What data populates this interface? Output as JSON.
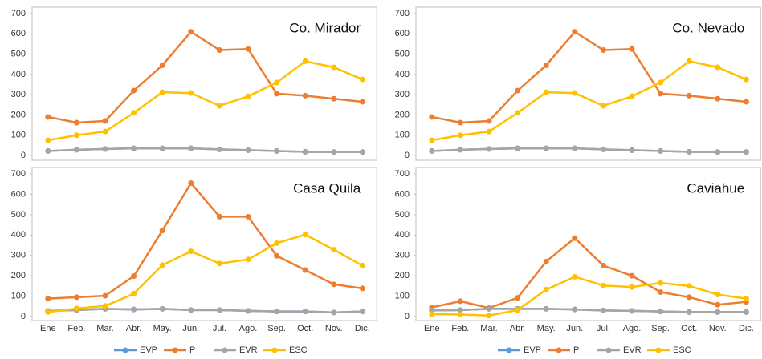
{
  "chart_data": [
    {
      "type": "line",
      "title": "Co. Mirador",
      "ylim": [
        0,
        700
      ],
      "yticks": [
        0,
        100,
        200,
        300,
        400,
        500,
        600,
        700
      ],
      "series": [
        {
          "color": "#5b9bd5",
          "values": [
            22,
            28,
            32,
            35,
            35,
            35,
            30,
            26,
            22,
            18,
            17,
            17
          ]
        },
        {
          "color": "#ed7d31",
          "values": [
            190,
            162,
            170,
            320,
            445,
            610,
            520,
            525,
            305,
            295,
            280,
            265
          ]
        },
        {
          "color": "#a5a5a5",
          "values": [
            22,
            28,
            32,
            35,
            35,
            35,
            30,
            26,
            22,
            18,
            17,
            17
          ]
        },
        {
          "color": "#ffc000",
          "values": [
            75,
            100,
            118,
            210,
            312,
            308,
            245,
            292,
            360,
            465,
            435,
            375
          ]
        }
      ]
    },
    {
      "type": "line",
      "title": "Co. Nevado",
      "ylim": [
        0,
        700
      ],
      "yticks": [
        0,
        100,
        200,
        300,
        400,
        500,
        600,
        700
      ],
      "series": [
        {
          "color": "#5b9bd5",
          "values": [
            22,
            28,
            32,
            35,
            35,
            35,
            30,
            26,
            22,
            18,
            17,
            17
          ]
        },
        {
          "color": "#ed7d31",
          "values": [
            190,
            162,
            170,
            320,
            445,
            610,
            520,
            525,
            305,
            295,
            280,
            265
          ]
        },
        {
          "color": "#a5a5a5",
          "values": [
            22,
            28,
            32,
            35,
            35,
            35,
            30,
            26,
            22,
            18,
            17,
            17
          ]
        },
        {
          "color": "#ffc000",
          "values": [
            75,
            100,
            118,
            210,
            312,
            308,
            245,
            292,
            360,
            465,
            435,
            375
          ]
        }
      ]
    },
    {
      "type": "line",
      "title": "Casa Quila",
      "ylim": [
        0,
        700
      ],
      "yticks": [
        0,
        100,
        200,
        300,
        400,
        500,
        600,
        700
      ],
      "categories": [
        "Ene",
        "Feb.",
        "Mar.",
        "Abr.",
        "May.",
        "Jun.",
        "Jul.",
        "Ago.",
        "Sep.",
        "Oct.",
        "Nov.",
        "Dic."
      ],
      "series": [
        {
          "name": "EVP",
          "color": "#5b9bd5",
          "values": [
            28,
            32,
            38,
            35,
            38,
            32,
            32,
            28,
            25,
            25,
            20,
            25
          ]
        },
        {
          "name": "P",
          "color": "#ed7d31",
          "values": [
            88,
            95,
            102,
            198,
            422,
            655,
            490,
            490,
            298,
            228,
            158,
            138
          ]
        },
        {
          "name": "EVR",
          "color": "#a5a5a5",
          "values": [
            28,
            32,
            38,
            35,
            38,
            32,
            32,
            28,
            25,
            25,
            20,
            25
          ]
        },
        {
          "name": "ESC",
          "color": "#ffc000",
          "values": [
            22,
            40,
            52,
            112,
            252,
            320,
            260,
            280,
            360,
            402,
            328,
            250
          ]
        }
      ]
    },
    {
      "type": "line",
      "title": "Caviahue",
      "ylim": [
        0,
        700
      ],
      "yticks": [
        0,
        100,
        200,
        300,
        400,
        500,
        600,
        700
      ],
      "categories": [
        "Ene",
        "Feb.",
        "Mar.",
        "Abr.",
        "May.",
        "Jun.",
        "Jul.",
        "Ago.",
        "Sep.",
        "Oct.",
        "Nov.",
        "Dic."
      ],
      "series": [
        {
          "name": "EVP",
          "color": "#5b9bd5",
          "values": [
            30,
            32,
            38,
            38,
            38,
            35,
            30,
            28,
            25,
            22,
            22,
            22
          ]
        },
        {
          "name": "P",
          "color": "#ed7d31",
          "values": [
            45,
            75,
            42,
            92,
            270,
            385,
            250,
            200,
            120,
            95,
            58,
            72
          ]
        },
        {
          "name": "EVR",
          "color": "#a5a5a5",
          "values": [
            30,
            32,
            38,
            38,
            38,
            35,
            30,
            28,
            25,
            22,
            22,
            22
          ]
        },
        {
          "name": "ESC",
          "color": "#ffc000",
          "values": [
            12,
            10,
            5,
            32,
            132,
            195,
            152,
            145,
            165,
            150,
            108,
            88
          ]
        }
      ]
    }
  ]
}
